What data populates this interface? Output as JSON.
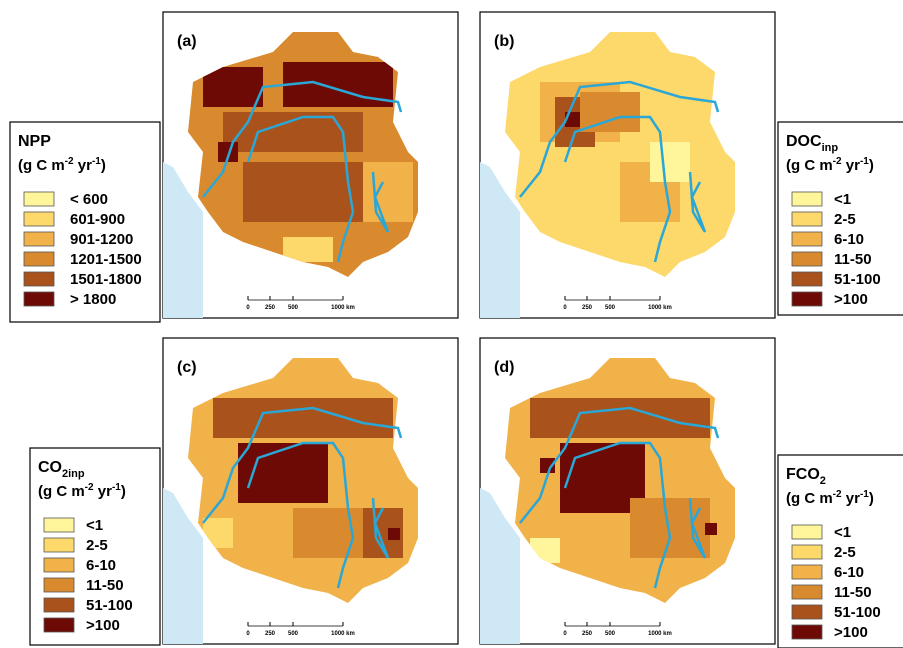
{
  "panels": [
    {
      "label": "(a)"
    },
    {
      "label": "(b)"
    },
    {
      "label": "(c)"
    },
    {
      "label": "(d)"
    }
  ],
  "scale_bar": [
    "0",
    "250",
    "500",
    "1000 km"
  ],
  "legends": [
    {
      "title": "NPP",
      "title_sub": null,
      "unit": [
        "(g C m",
        "-2",
        " yr",
        "-1",
        ")"
      ],
      "items": [
        "< 600",
        "601-900",
        "901-1200",
        "1201-1500",
        "1501-1800",
        "> 1800"
      ]
    },
    {
      "title": "DOC",
      "title_sub": "inp",
      "unit": [
        "(g C m",
        "-2",
        " yr",
        "-1",
        ")"
      ],
      "items": [
        "<1",
        "2-5",
        "6-10",
        "11-50",
        "51-100",
        ">100"
      ]
    },
    {
      "title": "CO",
      "title_sub": "2inp",
      "unit": [
        "(g C m",
        "-2",
        " yr",
        "-1",
        ")"
      ],
      "items": [
        "<1",
        "2-5",
        "6-10",
        "11-50",
        "51-100",
        ">100"
      ]
    },
    {
      "title": "FCO",
      "title_sub": "2",
      "unit": [
        "(g C m",
        "-2",
        " yr",
        "-1",
        ")"
      ],
      "items": [
        "<1",
        "2-5",
        "6-10",
        "11-50",
        "51-100",
        ">100"
      ]
    }
  ]
}
